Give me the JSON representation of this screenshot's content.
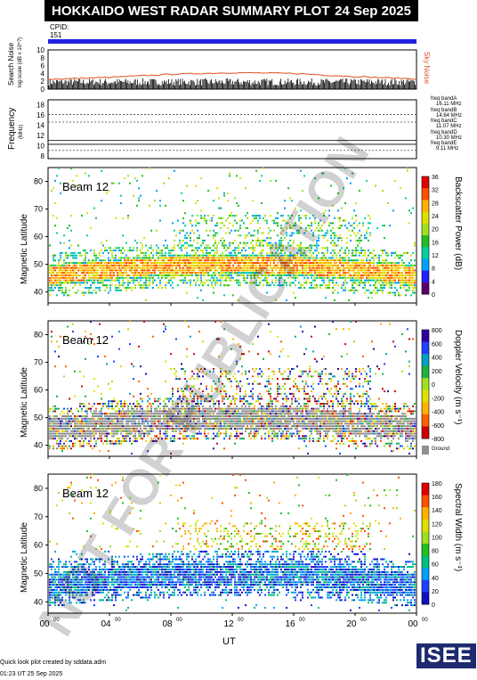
{
  "header": {
    "title": "HOKKAIDO WEST RADAR SUMMARY PLOT",
    "date": "24 Sep 2025"
  },
  "cpid": {
    "label": "CPID:",
    "value": "151"
  },
  "noise_panel": {
    "ylabel": "Search Noise",
    "yunit": "log-scale (dB x 10^?)",
    "ticks": [
      "10",
      "8",
      "6",
      "4",
      "2",
      "0"
    ],
    "legend": "Sky Noise",
    "legend_color": "#e05020"
  },
  "freq_panel": {
    "ylabel": "Frequency",
    "yunit": "(MHz)",
    "ticks": [
      "18",
      "16",
      "14",
      "12",
      "10",
      "8"
    ],
    "bands": [
      {
        "name": "freq bandA",
        "value": "16.11 MHz"
      },
      {
        "name": "freq bandB",
        "value": "14.64 MHz"
      },
      {
        "name": "freq bandC",
        "value": "11.07 MHz"
      },
      {
        "name": "freq bandD",
        "value": "10.30 MHz"
      },
      {
        "name": "freq bandE",
        "value": "9.11 MHz"
      }
    ]
  },
  "panels": [
    {
      "beam": "Beam 12",
      "ylabel": "Magnetic Latitude",
      "cbar_label": "Backscatter Power (dB)",
      "cbar_ticks": [
        "36",
        "32",
        "28",
        "24",
        "20",
        "16",
        "12",
        "8",
        "4",
        "0"
      ]
    },
    {
      "beam": "Beam 12",
      "ylabel": "Magnetic Latitude",
      "cbar_label": "Doppler Velocity (m s⁻¹)",
      "cbar_ticks": [
        "800",
        "600",
        "400",
        "200",
        "0",
        "-200",
        "-400",
        "-600",
        "-800"
      ],
      "ground_scatter": "Ground Scatter"
    },
    {
      "beam": "Beam 12",
      "ylabel": "Magnetic Latitude",
      "cbar_label": "Spectral Width (m s⁻¹)",
      "cbar_ticks": [
        "180",
        "160",
        "140",
        "120",
        "100",
        "80",
        "60",
        "40",
        "20",
        "0"
      ]
    }
  ],
  "lat_ticks": [
    "80",
    "70",
    "60",
    "50",
    "40"
  ],
  "x_ticks": [
    "00",
    "04",
    "08",
    "12",
    "16",
    "20",
    "00"
  ],
  "x_tick_sup": "00",
  "xlabel": "UT",
  "watermark": "NOT FOR PUBLICATION",
  "footer": {
    "created": "Quick look plot created by sddata.adm",
    "timestamp": "01:23 UT 25 Sep 2025",
    "logo": "ISEE"
  },
  "chart_data": [
    {
      "type": "line",
      "title": "Search Noise",
      "x": [
        0,
        4,
        8,
        12,
        16,
        20,
        24
      ],
      "series": [
        {
          "name": "Sky Noise",
          "values": [
            2.5,
            3,
            3.8,
            4.2,
            4,
            3.2,
            2.6
          ]
        }
      ],
      "ylim": [
        0,
        10
      ]
    },
    {
      "type": "scatter",
      "title": "Backscatter Power (dB)",
      "xlabel": "UT",
      "ylabel": "Magnetic Latitude",
      "xlim": [
        0,
        24
      ],
      "ylim": [
        36,
        85
      ],
      "clim": [
        0,
        36
      ]
    },
    {
      "type": "scatter",
      "title": "Doppler Velocity (m s⁻¹)",
      "xlabel": "UT",
      "ylabel": "Magnetic Latitude",
      "xlim": [
        0,
        24
      ],
      "ylim": [
        36,
        85
      ],
      "clim": [
        -800,
        800
      ]
    },
    {
      "type": "scatter",
      "title": "Spectral Width (m s⁻¹)",
      "xlabel": "UT",
      "ylabel": "Magnetic Latitude",
      "xlim": [
        0,
        24
      ],
      "ylim": [
        36,
        85
      ],
      "clim": [
        0,
        180
      ]
    }
  ]
}
